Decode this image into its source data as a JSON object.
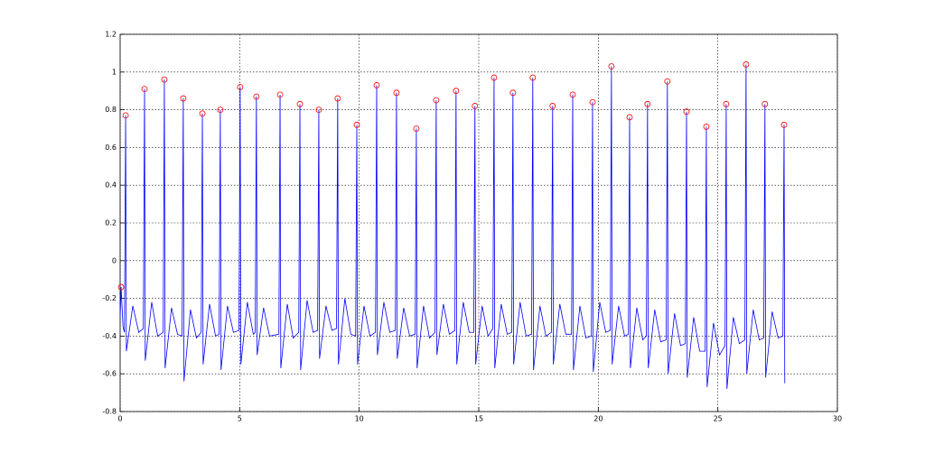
{
  "chart_data": {
    "type": "line",
    "xlim": [
      0,
      30
    ],
    "xticks": [
      0,
      5,
      10,
      15,
      20,
      25,
      30
    ],
    "ylim": [
      -0.8,
      1.2
    ],
    "yticks": [
      -0.8,
      -0.6,
      -0.4,
      -0.2,
      0,
      0.2,
      0.4,
      0.6,
      0.8,
      1,
      1.2
    ],
    "grid": true,
    "series": [
      {
        "color": "#0000ff",
        "marker": "none",
        "x": [
          0,
          0.04,
          0.12,
          0.18,
          0.23,
          0.26,
          0.53,
          0.78,
          0.97,
          1.02,
          1.05,
          1.32,
          1.57,
          1.8,
          1.85,
          1.88,
          2.15,
          2.4,
          2.59,
          2.64,
          2.67,
          2.94,
          3.19,
          3.39,
          3.44,
          3.47,
          3.74,
          3.99,
          4.14,
          4.19,
          4.22,
          4.49,
          4.74,
          4.97,
          5.02,
          5.05,
          5.32,
          5.57,
          5.65,
          5.7,
          5.73,
          6.0,
          6.25,
          6.64,
          6.69,
          6.72,
          6.99,
          7.24,
          7.47,
          7.52,
          7.55,
          7.82,
          8.07,
          8.26,
          8.31,
          8.34,
          8.61,
          8.86,
          9.05,
          9.1,
          9.13,
          9.4,
          9.65,
          9.85,
          9.9,
          9.93,
          10.2,
          10.45,
          10.68,
          10.73,
          10.76,
          11.03,
          11.28,
          11.51,
          11.56,
          11.59,
          11.86,
          12.11,
          12.34,
          12.39,
          12.42,
          12.69,
          12.94,
          13.17,
          13.22,
          13.25,
          13.52,
          13.77,
          14.0,
          14.05,
          14.08,
          14.35,
          14.6,
          14.79,
          14.84,
          14.87,
          15.14,
          15.39,
          15.59,
          15.64,
          15.67,
          15.94,
          16.19,
          16.38,
          16.43,
          16.46,
          16.73,
          16.98,
          17.21,
          17.26,
          17.29,
          17.56,
          17.81,
          18.04,
          18.09,
          18.12,
          18.39,
          18.64,
          18.88,
          18.93,
          18.96,
          19.23,
          19.48,
          19.71,
          19.76,
          19.79,
          20.06,
          20.31,
          20.5,
          20.55,
          20.58,
          20.85,
          21.1,
          21.26,
          21.31,
          21.34,
          21.61,
          21.86,
          22.01,
          22.06,
          22.09,
          22.36,
          22.61,
          22.84,
          22.89,
          22.92,
          23.19,
          23.44,
          23.64,
          23.69,
          23.72,
          23.99,
          24.24,
          24.47,
          24.52,
          24.55,
          24.82,
          25.07,
          25.3,
          25.35,
          25.38,
          25.65,
          25.9,
          26.13,
          26.18,
          26.21,
          26.48,
          26.73,
          26.92,
          26.97,
          27.0,
          27.27,
          27.52,
          27.72,
          27.77,
          27.8
        ],
        "values": [
          -0.3,
          -0.14,
          -0.35,
          -0.38,
          0.77,
          -0.48,
          -0.24,
          -0.38,
          -0.36,
          0.91,
          -0.53,
          -0.22,
          -0.4,
          -0.38,
          0.96,
          -0.57,
          -0.25,
          -0.39,
          -0.4,
          0.86,
          -0.64,
          -0.26,
          -0.41,
          -0.38,
          0.78,
          -0.55,
          -0.23,
          -0.4,
          -0.39,
          0.8,
          -0.58,
          -0.24,
          -0.38,
          -0.37,
          0.92,
          -0.55,
          -0.22,
          -0.39,
          -0.38,
          0.87,
          -0.5,
          -0.25,
          -0.4,
          -0.39,
          0.88,
          -0.57,
          -0.23,
          -0.41,
          -0.38,
          0.83,
          -0.58,
          -0.21,
          -0.38,
          -0.37,
          0.8,
          -0.52,
          -0.24,
          -0.37,
          -0.36,
          0.86,
          -0.55,
          -0.2,
          -0.39,
          -0.4,
          0.72,
          -0.55,
          -0.24,
          -0.4,
          -0.38,
          0.93,
          -0.5,
          -0.22,
          -0.38,
          -0.37,
          0.89,
          -0.52,
          -0.25,
          -0.4,
          -0.39,
          0.7,
          -0.57,
          -0.24,
          -0.41,
          -0.38,
          0.85,
          -0.5,
          -0.23,
          -0.39,
          -0.37,
          0.9,
          -0.55,
          -0.22,
          -0.38,
          -0.38,
          0.82,
          -0.55,
          -0.24,
          -0.4,
          -0.36,
          0.97,
          -0.57,
          -0.23,
          -0.39,
          -0.38,
          0.89,
          -0.55,
          -0.22,
          -0.4,
          -0.39,
          0.97,
          -0.58,
          -0.24,
          -0.4,
          -0.38,
          0.82,
          -0.55,
          -0.23,
          -0.39,
          -0.39,
          0.88,
          -0.58,
          -0.24,
          -0.41,
          -0.4,
          0.84,
          -0.59,
          -0.22,
          -0.38,
          -0.37,
          1.03,
          -0.55,
          -0.24,
          -0.4,
          -0.39,
          0.76,
          -0.57,
          -0.25,
          -0.42,
          -0.4,
          0.83,
          -0.57,
          -0.26,
          -0.43,
          -0.42,
          0.95,
          -0.6,
          -0.28,
          -0.45,
          -0.44,
          0.79,
          -0.62,
          -0.3,
          -0.48,
          -0.48,
          0.71,
          -0.67,
          -0.33,
          -0.5,
          -0.45,
          0.83,
          -0.68,
          -0.3,
          -0.44,
          -0.42,
          1.04,
          -0.6,
          -0.26,
          -0.42,
          -0.41,
          0.83,
          -0.62,
          -0.27,
          -0.41,
          -0.4,
          0.72,
          -0.65
        ]
      },
      {
        "color": "#ff0000",
        "marker": "circle",
        "x": [
          0.04,
          0.23,
          1.02,
          1.85,
          2.64,
          3.44,
          4.19,
          5.02,
          5.7,
          6.69,
          7.52,
          8.31,
          9.1,
          9.9,
          10.73,
          11.56,
          12.39,
          13.22,
          14.05,
          14.84,
          15.64,
          16.43,
          17.26,
          18.09,
          18.93,
          19.76,
          20.55,
          21.31,
          22.06,
          22.89,
          23.69,
          24.52,
          25.35,
          26.18,
          26.97,
          27.77
        ],
        "values": [
          -0.14,
          0.77,
          0.91,
          0.96,
          0.86,
          0.78,
          0.8,
          0.92,
          0.87,
          0.88,
          0.83,
          0.8,
          0.86,
          0.72,
          0.93,
          0.89,
          0.7,
          0.85,
          0.9,
          0.82,
          0.97,
          0.89,
          0.97,
          0.82,
          0.88,
          0.84,
          1.03,
          0.76,
          0.83,
          0.95,
          0.79,
          0.71,
          0.83,
          1.04,
          0.83,
          0.72
        ]
      }
    ]
  }
}
